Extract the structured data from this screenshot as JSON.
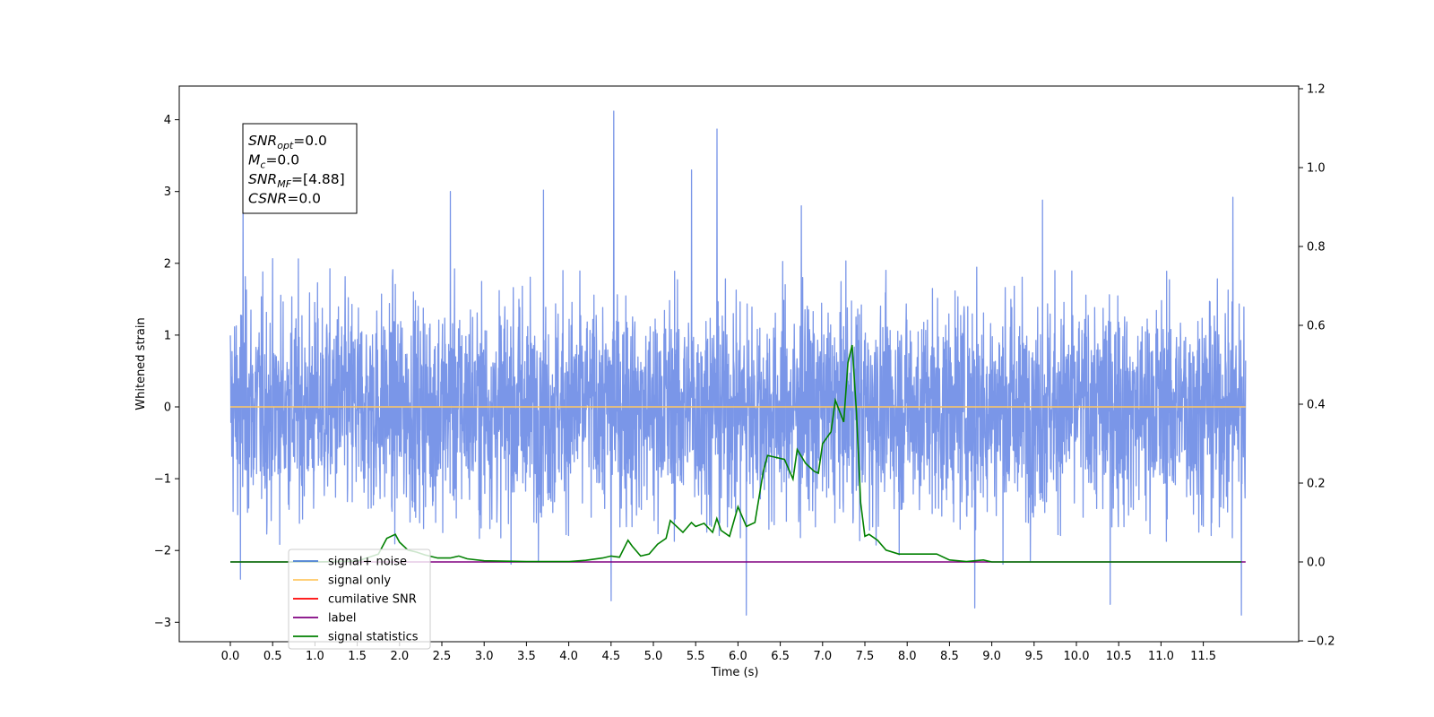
{
  "chart_data": {
    "type": "line",
    "xlabel": "Time (s)",
    "ylabel": "Whitened strain",
    "xlim": [
      -0.06,
      12.55
    ],
    "ylim": [
      -3.25,
      4.47
    ],
    "y2lim": [
      -0.2,
      1.2
    ],
    "grid": false,
    "legend_position": "lower-left",
    "x_ticks": [
      "0.0",
      "0.5",
      "1.0",
      "1.5",
      "2.0",
      "2.5",
      "3.0",
      "3.5",
      "4.0",
      "4.5",
      "5.0",
      "5.5",
      "6.0",
      "6.5",
      "7.0",
      "7.5",
      "8.0",
      "8.5",
      "9.0",
      "9.5",
      "10.0",
      "10.5",
      "11.0",
      "11.5"
    ],
    "y_ticks": [
      "−3",
      "−2",
      "−1",
      "0",
      "1",
      "2",
      "3",
      "4"
    ],
    "y2_ticks": [
      "−0.2",
      "0.0",
      "0.2",
      "0.4",
      "0.6",
      "0.8",
      "1.0",
      "1.2"
    ],
    "info_box": [
      {
        "main": "SNR",
        "sub": "opt",
        "value": "=0.0"
      },
      {
        "main": "M",
        "sub": "c",
        "value": "=0.0"
      },
      {
        "main": "SNR",
        "sub": "MF",
        "value": "=[4.88]"
      },
      {
        "main": "CSNR",
        "sub": "",
        "value": "=0.0"
      }
    ],
    "legend": [
      {
        "label": "signal+ noise",
        "color": "#4a7fd4"
      },
      {
        "label": "signal only",
        "color": "#ffc864"
      },
      {
        "label": "cumilative SNR",
        "color": "#ff0000"
      },
      {
        "label": "label",
        "color": "#800080"
      },
      {
        "label": "signal statistics",
        "color": "#008000"
      }
    ],
    "series": [
      {
        "name": "signal+ noise",
        "color": "#7a96e8",
        "description_range": [
          -2.9,
          4.12
        ],
        "x_range": [
          0.0,
          12.0
        ],
        "noise_sigma": 0.75,
        "spikes": [
          {
            "x": 0.15,
            "y": 3.1
          },
          {
            "x": 4.53,
            "y": 4.12
          },
          {
            "x": 5.75,
            "y": 3.87
          },
          {
            "x": 5.45,
            "y": 3.3
          },
          {
            "x": 3.7,
            "y": 3.02
          },
          {
            "x": 2.6,
            "y": 3.0
          },
          {
            "x": 6.75,
            "y": 2.8
          },
          {
            "x": 9.6,
            "y": 2.88
          },
          {
            "x": 11.85,
            "y": 2.92
          },
          {
            "x": 6.1,
            "y": -2.9
          },
          {
            "x": 11.95,
            "y": -2.9
          },
          {
            "x": 8.8,
            "y": -2.8
          },
          {
            "x": 4.5,
            "y": -2.7
          },
          {
            "x": 10.4,
            "y": -2.75
          },
          {
            "x": 0.12,
            "y": -2.4
          }
        ]
      },
      {
        "name": "signal only",
        "color": "#ffc864",
        "x": [
          0.0,
          12.0
        ],
        "y": [
          0.0,
          0.0
        ]
      },
      {
        "name": "label",
        "color": "#800080",
        "axis": "right",
        "x": [
          0.0,
          12.0
        ],
        "y": [
          0.0,
          0.0
        ]
      },
      {
        "name": "signal statistics",
        "color": "#008000",
        "axis": "right",
        "x": [
          0.0,
          0.5,
          1.0,
          1.5,
          1.75,
          1.85,
          1.95,
          2.0,
          2.1,
          2.2,
          2.3,
          2.45,
          2.6,
          2.7,
          2.8,
          3.0,
          3.5,
          4.0,
          4.2,
          4.4,
          4.5,
          4.6,
          4.7,
          4.75,
          4.85,
          4.95,
          5.05,
          5.15,
          5.2,
          5.25,
          5.35,
          5.45,
          5.5,
          5.6,
          5.7,
          5.75,
          5.8,
          5.9,
          6.0,
          6.1,
          6.2,
          6.3,
          6.35,
          6.45,
          6.55,
          6.65,
          6.7,
          6.8,
          6.9,
          6.95,
          7.0,
          7.1,
          7.15,
          7.25,
          7.3,
          7.35,
          7.4,
          7.45,
          7.5,
          7.55,
          7.65,
          7.75,
          7.9,
          8.1,
          8.35,
          8.5,
          8.7,
          8.9,
          9.0,
          9.2,
          10.0,
          11.0,
          11.95
        ],
        "y": [
          0.0,
          0.0,
          0.0,
          0.002,
          0.02,
          0.06,
          0.07,
          0.05,
          0.03,
          0.025,
          0.018,
          0.01,
          0.01,
          0.015,
          0.008,
          0.003,
          0.001,
          0.001,
          0.004,
          0.01,
          0.015,
          0.012,
          0.055,
          0.04,
          0.015,
          0.02,
          0.045,
          0.06,
          0.105,
          0.095,
          0.075,
          0.1,
          0.09,
          0.098,
          0.075,
          0.11,
          0.08,
          0.065,
          0.14,
          0.09,
          0.1,
          0.23,
          0.27,
          0.265,
          0.26,
          0.21,
          0.285,
          0.25,
          0.23,
          0.225,
          0.3,
          0.33,
          0.41,
          0.355,
          0.505,
          0.55,
          0.38,
          0.15,
          0.065,
          0.07,
          0.055,
          0.03,
          0.02,
          0.02,
          0.02,
          0.005,
          0.001,
          0.005,
          0.0,
          0.0,
          0.0,
          0.0,
          0.0
        ]
      }
    ]
  }
}
